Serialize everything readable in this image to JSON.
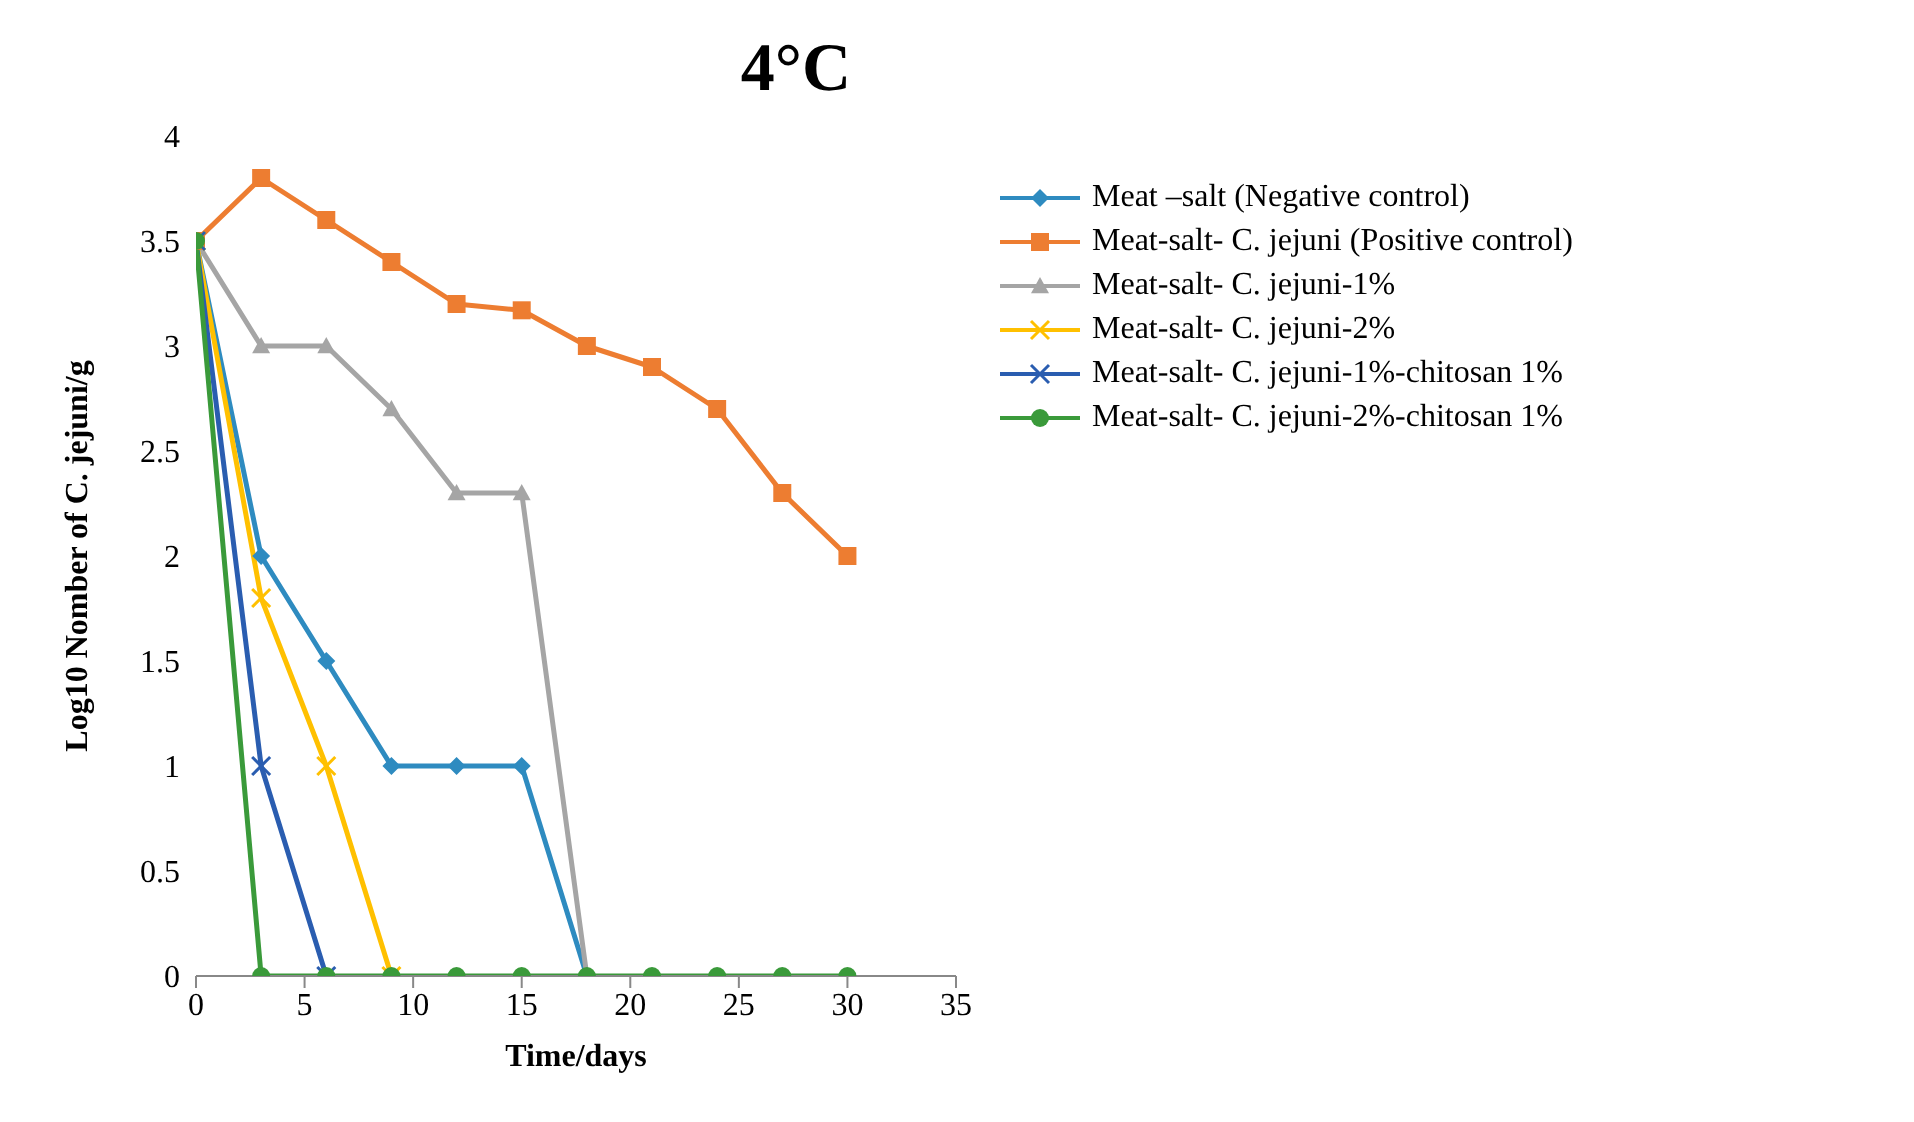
{
  "chart_data": {
    "type": "line",
    "title": "4°C",
    "xlabel": "Time/days",
    "ylabel": "Log10 Nomber of C. jejuni/g",
    "x": [
      0,
      3,
      6,
      9,
      12,
      15,
      18,
      21,
      24,
      27,
      30
    ],
    "xlim": [
      0,
      35
    ],
    "xticks": [
      0,
      5,
      10,
      15,
      20,
      25,
      30,
      35
    ],
    "ylim": [
      0,
      4
    ],
    "yticks": [
      0,
      0.5,
      1,
      1.5,
      2,
      2.5,
      3,
      3.5,
      4
    ],
    "grid": false,
    "legend": "right",
    "series": [
      {
        "name": "Meat –salt (Negative control)",
        "color": "#2e8bc0",
        "marker": "diamond",
        "values": [
          3.5,
          2,
          1.5,
          1,
          1,
          1,
          0,
          null,
          null,
          null,
          null
        ]
      },
      {
        "name": "Meat-salt- C. jejuni (Positive control)",
        "color": "#ed7d31",
        "marker": "square",
        "values": [
          3.5,
          3.8,
          3.6,
          3.4,
          3.2,
          3.17,
          3.0,
          2.9,
          2.7,
          2.3,
          2.0
        ]
      },
      {
        "name": "Meat-salt- C. jejuni-1%",
        "color": "#a5a5a5",
        "marker": "triangle",
        "values": [
          3.5,
          3.0,
          3.0,
          2.7,
          2.3,
          2.3,
          0,
          null,
          null,
          null,
          null
        ]
      },
      {
        "name": "Meat-salt- C. jejuni-2%",
        "color": "#ffc000",
        "marker": "cross",
        "values": [
          3.5,
          1.8,
          1.0,
          0,
          null,
          null,
          null,
          null,
          null,
          null,
          null
        ]
      },
      {
        "name": "Meat-salt- C. jejuni-1%-chitosan 1%",
        "color": "#2a5db0",
        "marker": "cross",
        "values": [
          3.5,
          1.0,
          0,
          null,
          null,
          null,
          null,
          null,
          null,
          null,
          null
        ]
      },
      {
        "name": "Meat-salt- C. jejuni-2%-chitosan  1%",
        "color": "#3a9a3a",
        "marker": "circle",
        "values": [
          3.5,
          0,
          0,
          0,
          0,
          0,
          0,
          0,
          0,
          0,
          0
        ]
      }
    ]
  }
}
